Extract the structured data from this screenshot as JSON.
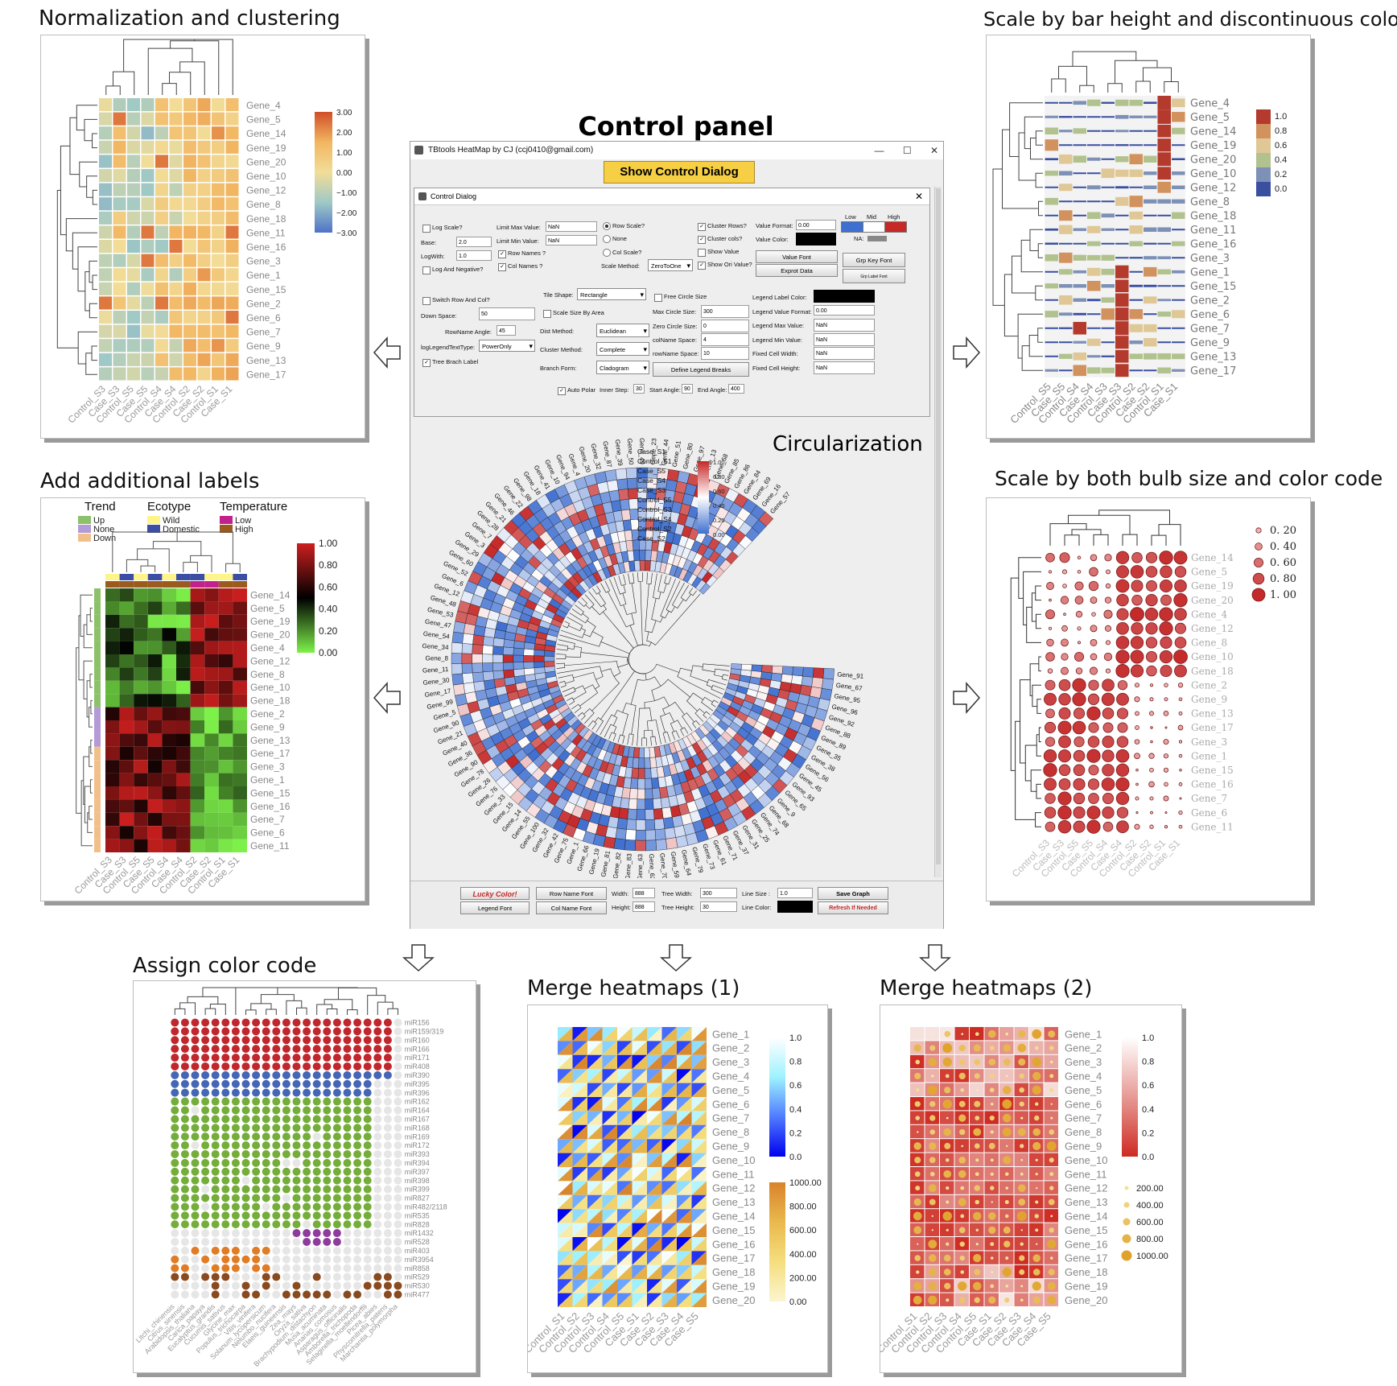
{
  "titles": {
    "norm": "Normalization and clustering",
    "bar": "Scale by bar height and discontinuous colors",
    "labels": "Add additional labels",
    "bulb": "Scale by both bulb size and color code",
    "assign": "Assign color code",
    "merge1": "Merge heatmaps (1)",
    "merge2": "Merge heatmaps (2)",
    "control": "Control panel",
    "circular": "Circularization"
  },
  "colors": {
    "red": "#c62828",
    "blue": "#3f6fd0",
    "green": "#7ad23e",
    "yellow": "#f3e58a",
    "accent_button": "#f6cf44"
  },
  "window": {
    "title": "TBtools HeatMap by CJ (ccj0410@gmail.com)",
    "minimize": "—",
    "maximize": "☐",
    "close": "✕",
    "show_control": "Show Control Dialog"
  },
  "dialog": {
    "title": "Control Dialog",
    "close": "✕",
    "log_scale": "Log Scale?",
    "base_label": "Base:",
    "base_value": "2.0",
    "logwith_label": "LogWith:",
    "logwith_value": "1.0",
    "log_negative": "Log And Negative?",
    "limit_max_label": "Limit Max Value:",
    "limit_max_value": "NaN",
    "limit_min_label": "Limit Min Value:",
    "limit_min_value": "NaN",
    "row_names": "Row Names ?",
    "col_names": "Col Names ?",
    "row_scale": "Row Scale?",
    "none": "None",
    "col_scale": "Col Scale?",
    "scale_method_label": "Scale Method:",
    "scale_method_value": "ZeroToOne",
    "cluster_rows": "Cluster Rows?",
    "cluster_cols": "Cluster cols?",
    "show_value": "Show Value",
    "show_ori": "Show Ori Value?",
    "value_format_label": "Value Format:",
    "value_format_value": "0.00",
    "value_color_label": "Value Color:",
    "value_font": "Value Font",
    "export_data": "Exprot Data",
    "low": "Low",
    "mid": "Mid",
    "high": "High",
    "na": "NA:",
    "grp_key_font": "Grp Key Font",
    "grp_label_font": "Grp Label Font",
    "switch_row_col": "Switch Row And Col?",
    "down_space_label": "Down Space:",
    "down_space_value": "50",
    "row_name_angle_label": "RowName Angle:",
    "row_name_angle_value": "45",
    "log_legend_label": "logLegendTextType:",
    "log_legend_value": "PowerOnly",
    "tree_brach_label": "Tree Brach Label",
    "tile_shape_label": "Tile Shape:",
    "tile_shape_value": "Rectangle",
    "scale_size_area": "Scale Size By Area",
    "dist_method_label": "Dist Method:",
    "dist_method_value": "Euclidean",
    "cluster_method_label": "Cluster Method:",
    "cluster_method_value": "Complete",
    "branch_form_label": "Branch Form:",
    "branch_form_value": "Cladogram",
    "free_circle": "Free Circle Size",
    "max_circle_label": "Max Circle Size:",
    "max_circle_value": "300",
    "zero_circle_label": "Zero Circle Size:",
    "zero_circle_value": "0",
    "colname_space_label": "colName Space:",
    "colname_space_value": "4",
    "rowname_space_label": "rowName Space:",
    "rowname_space_value": "10",
    "define_legend": "Define Legend Breaks",
    "legend_label_color": "Legend Label Color:",
    "legend_value_format_label": "Legend Value Format:",
    "legend_value_format_value": "0.00",
    "legend_max_label": "Legend Max Value:",
    "legend_max_value": "NaN",
    "legend_min_label": "Legend Min Value:",
    "legend_min_value": "NaN",
    "fixed_width_label": "Fixed Cell Width:",
    "fixed_width_value": "NaN",
    "fixed_height_label": "Fixed Cell Height:",
    "fixed_height_value": "NaN",
    "auto_polar": "Auto Polar",
    "inner_step_label": "Inner Step:",
    "inner_step_value": "30",
    "start_angle_label": "Start Angle:",
    "start_angle_value": "90",
    "end_angle_label": "End Angle:",
    "end_angle_value": "400"
  },
  "bottom": {
    "lucky_color": "Lucky Color!",
    "legend_font": "Legend Font",
    "row_name_font": "Row Name Font",
    "col_name_font": "Col Name Font",
    "width_label": "Width:",
    "width_value": "888",
    "height_label": "Height:",
    "height_value": "888",
    "tree_width_label": "Tree Width:",
    "tree_width_value": "300",
    "tree_height_label": "Tree Height:",
    "tree_height_value": "30",
    "line_size_label": "Line Size :",
    "line_size_value": "1.0",
    "line_color_label": "Line Color:",
    "save_graph": "Save Graph",
    "refresh": "Refresh If Needed"
  },
  "circular": {
    "samples": [
      "Case_S1",
      "Control_S1",
      "Case_S5",
      "Case_S4",
      "Case_S3",
      "Control_S5",
      "Control_S3",
      "Control_S4",
      "Control_S2",
      "Case_S2"
    ],
    "legend": [
      "1.00",
      "0.80",
      "0.60",
      "0.40",
      "0.20",
      "0.00"
    ],
    "genes": [
      "Gene_91",
      "Gene_67",
      "Gene_95",
      "Gene_96",
      "Gene_92",
      "Gene_88",
      "Gene_89",
      "Gene_35",
      "Gene_38",
      "Gene_56",
      "Gene_45",
      "Gene_93",
      "Gene_65",
      "Gene_9",
      "Gene_68",
      "Gene_74",
      "Gene_25",
      "Gene_31",
      "Gene_37",
      "Gene_71",
      "Gene_61",
      "Gene_73",
      "Gene_79",
      "Gene_64",
      "Gene_59",
      "Gene_70",
      "Gene_62",
      "Gene_63",
      "Gene_83",
      "Gene_82",
      "Gene_81",
      "Gene_19",
      "Gene_66",
      "Gene_1",
      "Gene_75",
      "Gene_42",
      "Gene_32",
      "Gene_100",
      "Gene_55",
      "Gene_14",
      "Gene_15",
      "Gene_33",
      "Gene_76",
      "Gene_26",
      "Gene_78",
      "Gene_90",
      "Gene_36",
      "Gene_40",
      "Gene_21",
      "Gene_90",
      "Gene_5",
      "Gene_99",
      "Gene_17",
      "Gene_30",
      "Gene_11",
      "Gene_8",
      "Gene_34",
      "Gene_54",
      "Gene_47",
      "Gene_53",
      "Gene_48",
      "Gene_12",
      "Gene_6",
      "Gene_52",
      "Gene_60",
      "Gene_29",
      "Gene_3",
      "Gene_7",
      "Gene_28",
      "Gene_21",
      "Gene_46",
      "Gene_22",
      "Gene_98",
      "Gene_18",
      "Gene_41",
      "Gene_10",
      "Gene_94",
      "Gene_4",
      "Gene_20",
      "Gene_32",
      "Gene_87",
      "Gene_39",
      "Gene_50",
      "Gene_49",
      "Gene_23",
      "Gene_44",
      "Gene_51",
      "Gene_80",
      "Gene_97",
      "Gene_13",
      "Gene_58",
      "Gene_85",
      "Gene_86",
      "Gene_84",
      "Gene_69",
      "Gene_16",
      "Gene_57"
    ]
  },
  "norm": {
    "genes": [
      "Gene_4",
      "Gene_5",
      "Gene_14",
      "Gene_19",
      "Gene_20",
      "Gene_10",
      "Gene_12",
      "Gene_8",
      "Gene_18",
      "Gene_11",
      "Gene_16",
      "Gene_3",
      "Gene_1",
      "Gene_15",
      "Gene_2",
      "Gene_6",
      "Gene_7",
      "Gene_9",
      "Gene_13",
      "Gene_17"
    ],
    "cols": [
      "Control_S3",
      "Case_S3",
      "Control_S5",
      "Case_S5",
      "Control_S4",
      "Case_S4",
      "Control_S2",
      "Case_S2",
      "Control_S1",
      "Case_S1"
    ],
    "legend": [
      "3.00",
      "2.00",
      "1.00",
      "0.00",
      "−1.00",
      "−2.00",
      "−3.00"
    ]
  },
  "bar": {
    "genes": [
      "Gene_4",
      "Gene_5",
      "Gene_14",
      "Gene_19",
      "Gene_20",
      "Gene_10",
      "Gene_12",
      "Gene_8",
      "Gene_18",
      "Gene_11",
      "Gene_16",
      "Gene_3",
      "Gene_1",
      "Gene_15",
      "Gene_2",
      "Gene_6",
      "Gene_7",
      "Gene_9",
      "Gene_13",
      "Gene_17"
    ],
    "cols": [
      "Control_S5",
      "Case_S5",
      "Control_S4",
      "Case_S4",
      "Control_S3",
      "Case_S3",
      "Control_S2",
      "Case_S2",
      "Control_S1",
      "Case_S1"
    ],
    "legend": [
      "1.0",
      "0.8",
      "0.6",
      "0.4",
      "0.2",
      "0.0"
    ]
  },
  "labels": {
    "groups": [
      {
        "title": "Trend",
        "items": [
          "Up",
          "None",
          "Down"
        ],
        "colors": [
          "#8cc16a",
          "#b49ad6",
          "#f1c08a"
        ]
      },
      {
        "title": "Ecotype",
        "items": [
          "Wild",
          "Domestic"
        ],
        "colors": [
          "#fff48a",
          "#3b4ea3"
        ]
      },
      {
        "title": "Temperature",
        "items": [
          "Low",
          "High"
        ],
        "colors": [
          "#c2208a",
          "#9b5a1e"
        ]
      }
    ],
    "genes": [
      "Gene_14",
      "Gene_5",
      "Gene_19",
      "Gene_20",
      "Gene_4",
      "Gene_12",
      "Gene_8",
      "Gene_10",
      "Gene_18",
      "Gene_2",
      "Gene_9",
      "Gene_13",
      "Gene_17",
      "Gene_3",
      "Gene_1",
      "Gene_15",
      "Gene_16",
      "Gene_7",
      "Gene_6",
      "Gene_11"
    ],
    "cols": [
      "Control_S3",
      "Case_S3",
      "Control_S5",
      "Case_S5",
      "Control_S4",
      "Case_S4",
      "Control_S2",
      "Case_S2",
      "Control_S1",
      "Case_S1"
    ],
    "legend": [
      "1.00",
      "0.80",
      "0.60",
      "0.40",
      "0.20",
      "0.00"
    ]
  },
  "bulb": {
    "genes": [
      "Gene_14",
      "Gene_5",
      "Gene_19",
      "Gene_20",
      "Gene_4",
      "Gene_12",
      "Gene_8",
      "Gene_10",
      "Gene_18",
      "Gene_2",
      "Gene_9",
      "Gene_13",
      "Gene_17",
      "Gene_3",
      "Gene_1",
      "Gene_15",
      "Gene_16",
      "Gene_7",
      "Gene_6",
      "Gene_11"
    ],
    "cols": [
      "Control_S3",
      "Case_S3",
      "Control_S5",
      "Case_S5",
      "Control_S4",
      "Case_S4",
      "Control_S2",
      "Case_S2",
      "Control_S1",
      "Case_S1"
    ],
    "legend": [
      "0. 20",
      "0. 40",
      "0. 60",
      "0. 80",
      "1. 00"
    ]
  },
  "assign": {
    "mirnas": [
      "miR156",
      "miR159/319",
      "miR160",
      "miR166",
      "miR171",
      "miR408",
      "miR390",
      "miR395",
      "miR396",
      "miR162",
      "miR164",
      "miR167",
      "miR168",
      "miR169",
      "miR172",
      "miR393",
      "miR394",
      "miR397",
      "miR398",
      "miR399",
      "miR827",
      "miR482/2118",
      "miR535",
      "miR828",
      "miR1432",
      "miR528",
      "miR403",
      "miR3954",
      "miR858",
      "miR529",
      "miR530",
      "miR477"
    ],
    "species": [
      "Litchi_chinensis",
      "Citrus_sinensis",
      "Arabidopsis_thaliana",
      "Carica_papaya",
      "Eucalyptus_grandis",
      "Cucumis_sativus",
      "Glycine_max",
      "Populus_trichocarpa",
      "Vitis_vinifera",
      "Solanum_lycopersicum",
      "Nelumbo_nucifera",
      "Elaeis_guineensis",
      "Zea_mays",
      "Oryza_sativa",
      "Brachypodium_distachyon",
      "Musa_acuminata",
      "Ananas_comosus",
      "Asparagus_officinalis",
      "Amborella_trichopoda",
      "Selaginella_moellendorffii",
      "Picea_abies",
      "Physcomitrella_patens",
      "Marchantia_polymorpha"
    ]
  },
  "merge1": {
    "genes": [
      "Gene_1",
      "Gene_2",
      "Gene_3",
      "Gene_4",
      "Gene_5",
      "Gene_6",
      "Gene_7",
      "Gene_8",
      "Gene_9",
      "Gene_10",
      "Gene_11",
      "Gene_12",
      "Gene_13",
      "Gene_14",
      "Gene_15",
      "Gene_16",
      "Gene_17",
      "Gene_18",
      "Gene_19",
      "Gene_20"
    ],
    "cols": [
      "Control_S1",
      "Control_S2",
      "Control_S3",
      "Control_S4",
      "Control_S5",
      "Case_S1",
      "Case_S2",
      "Case_S3",
      "Case_S4",
      "Case_S5"
    ],
    "legend1": [
      "1.0",
      "0.8",
      "0.6",
      "0.4",
      "0.2",
      "0.0"
    ],
    "legend2": [
      "1000.00",
      "800.00",
      "600.00",
      "400.00",
      "200.00",
      "0.00"
    ]
  },
  "merge2": {
    "genes": [
      "Gene_1",
      "Gene_2",
      "Gene_3",
      "Gene_4",
      "Gene_5",
      "Gene_6",
      "Gene_7",
      "Gene_8",
      "Gene_9",
      "Gene_10",
      "Gene_11",
      "Gene_12",
      "Gene_13",
      "Gene_14",
      "Gene_15",
      "Gene_16",
      "Gene_17",
      "Gene_18",
      "Gene_19",
      "Gene_20"
    ],
    "cols": [
      "Control_S1",
      "Control_S2",
      "Control_S3",
      "Control_S4",
      "Control_S5",
      "Case_S1",
      "Case_S2",
      "Case_S3",
      "Case_S4",
      "Case_S5"
    ],
    "legend1": [
      "1.0",
      "0.8",
      "0.6",
      "0.4",
      "0.2",
      "0.0"
    ],
    "legend2": [
      "200.00",
      "400.00",
      "600.00",
      "800.00",
      "1000.00"
    ]
  }
}
